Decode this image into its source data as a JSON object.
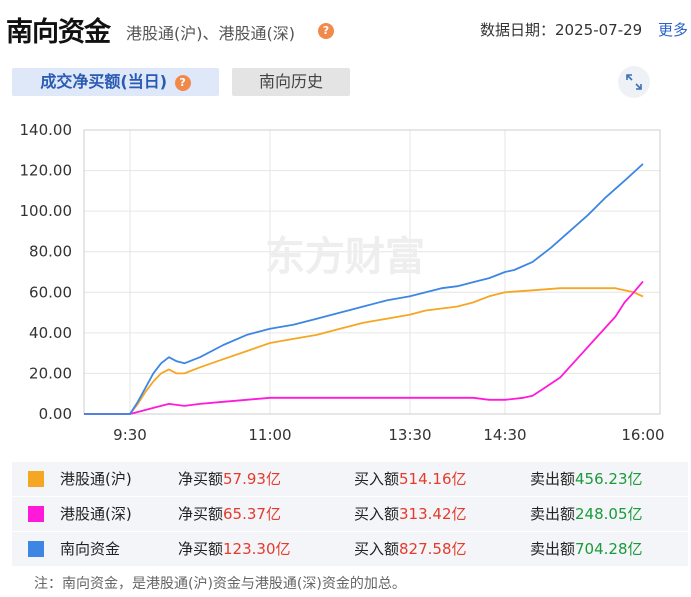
{
  "header": {
    "title": "南向资金",
    "subtitle": "港股通(沪)、港股通(深)",
    "help_glyph": "?",
    "date_label": "数据日期：",
    "date_value": "2025-07-29",
    "more_label": "更多"
  },
  "tabs": [
    {
      "label": "成交净买额(当日)",
      "active": true
    },
    {
      "label": "南向历史",
      "active": false
    }
  ],
  "watermark": "东方财富",
  "colors": {
    "hgt": "#f5a623",
    "sgt": "#ff1ad9",
    "total": "#3e86e3"
  },
  "chart_data": {
    "type": "line",
    "x_ticks": [
      "9:30",
      "11:00",
      "13:30",
      "14:30",
      "16:00"
    ],
    "y_ticks": [
      "0.00",
      "20.00",
      "40.00",
      "60.00",
      "80.00",
      "100.00",
      "120.00",
      "140.00"
    ],
    "ylim": [
      0,
      140
    ],
    "x_unit": "trading minutes from 9:00 (lunch break 12:00-13:00 compressed)",
    "grid": true,
    "series": [
      {
        "name": "港股通(沪)",
        "color": "#f5a623",
        "points": [
          [
            0,
            0
          ],
          [
            30,
            0
          ],
          [
            35,
            5
          ],
          [
            40,
            11
          ],
          [
            45,
            16
          ],
          [
            50,
            20
          ],
          [
            55,
            22
          ],
          [
            60,
            20
          ],
          [
            65,
            20
          ],
          [
            75,
            23
          ],
          [
            90,
            27
          ],
          [
            105,
            31
          ],
          [
            120,
            35
          ],
          [
            135,
            37
          ],
          [
            150,
            39
          ],
          [
            165,
            42
          ],
          [
            180,
            45
          ],
          [
            195,
            47
          ],
          [
            210,
            49
          ],
          [
            225,
            51
          ],
          [
            240,
            52
          ],
          [
            255,
            53
          ],
          [
            270,
            55
          ],
          [
            285,
            58
          ],
          [
            300,
            60
          ],
          [
            315,
            61
          ],
          [
            330,
            62
          ],
          [
            345,
            62
          ],
          [
            360,
            62
          ],
          [
            370,
            60
          ],
          [
            375,
            57.93
          ]
        ]
      },
      {
        "name": "港股通(深)",
        "color": "#ff1ad9",
        "points": [
          [
            0,
            0
          ],
          [
            30,
            0
          ],
          [
            35,
            1
          ],
          [
            45,
            3
          ],
          [
            55,
            5
          ],
          [
            65,
            4
          ],
          [
            75,
            5
          ],
          [
            90,
            6
          ],
          [
            105,
            7
          ],
          [
            120,
            8
          ],
          [
            150,
            8
          ],
          [
            180,
            8
          ],
          [
            210,
            8
          ],
          [
            240,
            8
          ],
          [
            270,
            8
          ],
          [
            285,
            7
          ],
          [
            300,
            7
          ],
          [
            310,
            8
          ],
          [
            315,
            9
          ],
          [
            320,
            12
          ],
          [
            330,
            18
          ],
          [
            340,
            28
          ],
          [
            350,
            38
          ],
          [
            360,
            48
          ],
          [
            365,
            55
          ],
          [
            370,
            60
          ],
          [
            375,
            65.37
          ]
        ]
      },
      {
        "name": "南向资金",
        "color": "#3e86e3",
        "points": [
          [
            0,
            0
          ],
          [
            30,
            0
          ],
          [
            35,
            6
          ],
          [
            40,
            13
          ],
          [
            45,
            20
          ],
          [
            50,
            25
          ],
          [
            55,
            28
          ],
          [
            60,
            26
          ],
          [
            65,
            25
          ],
          [
            75,
            28
          ],
          [
            90,
            34
          ],
          [
            105,
            39
          ],
          [
            120,
            42
          ],
          [
            135,
            44
          ],
          [
            150,
            47
          ],
          [
            165,
            50
          ],
          [
            180,
            53
          ],
          [
            195,
            56
          ],
          [
            210,
            58
          ],
          [
            225,
            60
          ],
          [
            240,
            62
          ],
          [
            255,
            63
          ],
          [
            270,
            65
          ],
          [
            285,
            67
          ],
          [
            300,
            70
          ],
          [
            305,
            71
          ],
          [
            315,
            75
          ],
          [
            325,
            82
          ],
          [
            335,
            90
          ],
          [
            345,
            98
          ],
          [
            355,
            107
          ],
          [
            365,
            115
          ],
          [
            375,
            123.3
          ]
        ]
      }
    ]
  },
  "legend": [
    {
      "name": "港股通(沪)",
      "net_label": "净买额",
      "net_value": "57.93亿",
      "buy_label": "买入额",
      "buy_value": "514.16亿",
      "sell_label": "卖出额",
      "sell_value": "456.23亿"
    },
    {
      "name": "港股通(深)",
      "net_label": "净买额",
      "net_value": "65.37亿",
      "buy_label": "买入额",
      "buy_value": "313.42亿",
      "sell_label": "卖出额",
      "sell_value": "248.05亿"
    },
    {
      "name": "南向资金",
      "net_label": "净买额",
      "net_value": "123.30亿",
      "buy_label": "买入额",
      "buy_value": "827.58亿",
      "sell_label": "卖出额",
      "sell_value": "704.28亿"
    }
  ],
  "note": "注：南向资金，是港股通(沪)资金与港股通(深)资金的加总。"
}
